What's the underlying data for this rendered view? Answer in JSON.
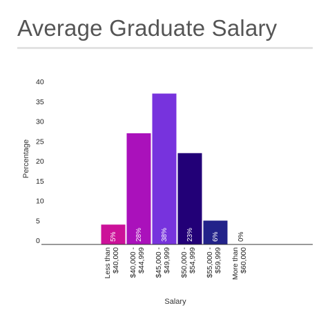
{
  "chart_data": {
    "type": "bar",
    "title": "Average Graduate Salary",
    "xlabel": "Salary",
    "ylabel": "Percentage",
    "ylim": [
      0,
      40
    ],
    "yticks": [
      0,
      5,
      10,
      15,
      20,
      25,
      30,
      35,
      40
    ],
    "grid": false,
    "categories": [
      [
        "Less than",
        "$40,000"
      ],
      [
        "$40,000 -",
        "$44,999"
      ],
      [
        "$45,000 -",
        "$49,999"
      ],
      [
        "$50,000 -",
        "$54,999"
      ],
      [
        "$55,000 -",
        "$59,999"
      ],
      [
        "More than",
        "$60,000"
      ]
    ],
    "values": [
      5,
      28,
      38,
      23,
      6,
      0
    ],
    "data_labels": [
      "5%",
      "28%",
      "38%",
      "23%",
      "6%",
      "0%"
    ],
    "colors": [
      "#cc1199",
      "#aa11bb",
      "#7733dd",
      "#220077",
      "#22228a",
      "#6a6a9a"
    ]
  }
}
